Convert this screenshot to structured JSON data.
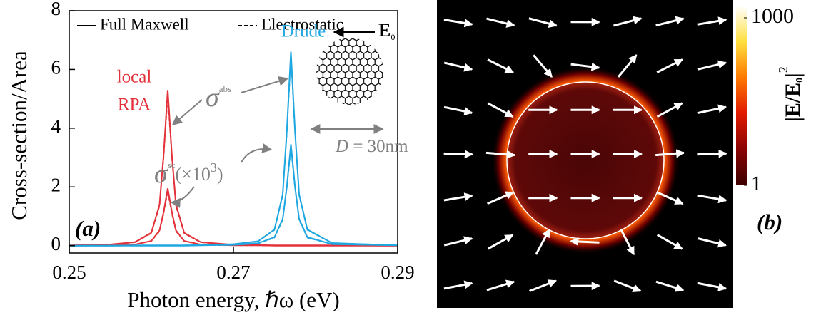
{
  "chart_data": [
    {
      "type": "line",
      "panel_label": "(a)",
      "x_label": "Photon energy, ℏω (eV)",
      "y_label": "Cross-section/Area",
      "x": [
        0.25,
        0.255,
        0.258,
        0.26,
        0.261,
        0.2615,
        0.262,
        0.2625,
        0.263,
        0.264,
        0.266,
        0.27,
        0.273,
        0.275,
        0.276,
        0.2765,
        0.277,
        0.2775,
        0.278,
        0.279,
        0.282,
        0.29
      ],
      "xlim": [
        0.25,
        0.29
      ],
      "xticks": [
        0.25,
        0.27,
        0.29
      ],
      "ylim": [
        -0.25,
        8
      ],
      "yticks": [
        0,
        2,
        4,
        6,
        8
      ],
      "legend": {
        "solid": "Full Maxwell",
        "dashed": "Electrostatic"
      },
      "series": [
        {
          "color": "#e3323b",
          "style": "solid",
          "values": [
            0.01,
            0.04,
            0.12,
            0.44,
            1.4,
            3.1,
            5.3,
            3.1,
            1.4,
            0.44,
            0.12,
            0.03,
            0.02,
            0.01,
            0.01,
            0.01,
            0.01,
            0.01,
            0.01,
            0.01,
            0.01,
            0
          ]
        },
        {
          "color": "#e3323b",
          "style": "dashed",
          "values": [
            0.01,
            0.04,
            0.11,
            0.42,
            1.35,
            3.0,
            5.1,
            3.0,
            1.35,
            0.42,
            0.11,
            0.03,
            0.02,
            0.01,
            0.01,
            0.01,
            0.01,
            0.01,
            0.01,
            0.01,
            0.01,
            0
          ]
        },
        {
          "color": "#e3323b",
          "style": "solid",
          "values": [
            0,
            0.01,
            0.04,
            0.16,
            0.52,
            1.15,
            1.95,
            1.15,
            0.52,
            0.16,
            0.04,
            0.01,
            0.01,
            0,
            0,
            0,
            0,
            0,
            0,
            0,
            0,
            0
          ]
        },
        {
          "color": "#e3323b",
          "style": "dashed",
          "values": [
            0,
            0.01,
            0.04,
            0.15,
            0.49,
            1.09,
            1.85,
            1.09,
            0.49,
            0.15,
            0.04,
            0.01,
            0.01,
            0,
            0,
            0,
            0,
            0,
            0,
            0,
            0,
            0
          ]
        },
        {
          "color": "#1ea7e1",
          "style": "solid",
          "values": [
            0,
            0,
            0.01,
            0.01,
            0.01,
            0.01,
            0.01,
            0.01,
            0.01,
            0.01,
            0.02,
            0.05,
            0.15,
            0.55,
            1.75,
            3.9,
            6.6,
            3.9,
            1.75,
            0.55,
            0.09,
            0.01
          ]
        },
        {
          "color": "#1ea7e1",
          "style": "dashed",
          "values": [
            0,
            0,
            0.01,
            0.01,
            0.01,
            0.01,
            0.01,
            0.01,
            0.01,
            0.01,
            0.02,
            0.05,
            0.14,
            0.53,
            1.7,
            3.8,
            6.4,
            3.8,
            1.7,
            0.53,
            0.09,
            0.01
          ]
        },
        {
          "color": "#1ea7e1",
          "style": "solid",
          "values": [
            0,
            0,
            0,
            0,
            0,
            0,
            0,
            0,
            0,
            0,
            0.01,
            0.03,
            0.08,
            0.29,
            0.91,
            2.0,
            3.45,
            2.0,
            0.91,
            0.29,
            0.05,
            0.01
          ]
        },
        {
          "color": "#1ea7e1",
          "style": "dashed",
          "values": [
            0,
            0,
            0,
            0,
            0,
            0,
            0,
            0,
            0,
            0,
            0.01,
            0.02,
            0.07,
            0.27,
            0.87,
            1.95,
            3.3,
            1.95,
            0.87,
            0.27,
            0.05,
            0.01
          ]
        }
      ],
      "annotations": {
        "local": "local",
        "rpa": "RPA",
        "drude": "Drude",
        "sigma_abs": {
          "symbol": "σ",
          "sup": "abs"
        },
        "sigma_sc": {
          "symbol": "σ",
          "sup": "sc",
          "text": "(×10",
          "exp": "3",
          "close": ")"
        },
        "field": {
          "symbol": "E",
          "sub": "0"
        },
        "diameter": {
          "symbol": "D",
          "text": " = 30nm"
        }
      }
    },
    {
      "type": "field-map",
      "panel_label": "(b)",
      "colormap": [
        "#3c0000",
        "#8a0404",
        "#e01a00",
        "#ff7a00",
        "#ffe040",
        "#ffffff"
      ],
      "colorbar": {
        "scale": "log",
        "lim": [
          1,
          1000
        ],
        "ticks": [
          1,
          1000
        ],
        "label": {
          "text": "|E/E",
          "sub": "0",
          "close": "|",
          "sup": "2"
        }
      }
    }
  ]
}
